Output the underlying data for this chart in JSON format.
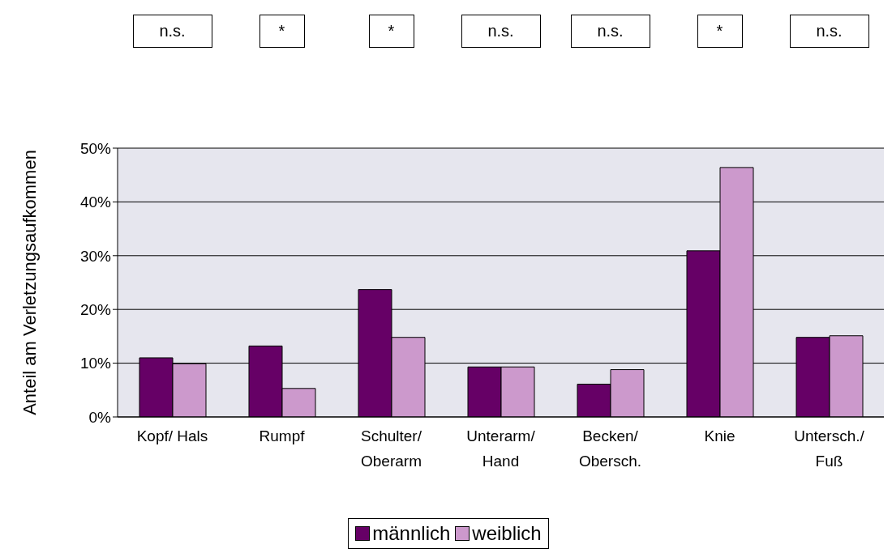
{
  "chart_data": {
    "type": "bar",
    "ylabel": "Anteil am Verletzungsaufkommen",
    "categories": [
      "Kopf/ Hals",
      "Rumpf",
      "Schulter/\nOberarm",
      "Unterarm/\nHand",
      "Becken/\nObersch.",
      "Knie",
      "Untersch./\nFuß"
    ],
    "series": [
      {
        "name": "männlich",
        "color": "#660066",
        "values": [
          11,
          13.2,
          23.7,
          9.3,
          6.1,
          30.9,
          14.8
        ]
      },
      {
        "name": "weiblich",
        "color": "#cc99cc",
        "values": [
          9.9,
          5.3,
          14.8,
          9.3,
          8.8,
          46.4,
          15.1
        ]
      }
    ],
    "ylim": [
      0,
      50
    ],
    "yticks": [
      {
        "value": 0,
        "label": "0%"
      },
      {
        "value": 10,
        "label": "10%"
      },
      {
        "value": 20,
        "label": "20%"
      },
      {
        "value": 30,
        "label": "30%"
      },
      {
        "value": 40,
        "label": "40%"
      },
      {
        "value": 50,
        "label": "50%"
      }
    ],
    "grid": "y",
    "legend": "bottom",
    "annotations": [
      "n.s.",
      "*",
      "*",
      "n.s.",
      "n.s.",
      "*",
      "n.s."
    ]
  }
}
